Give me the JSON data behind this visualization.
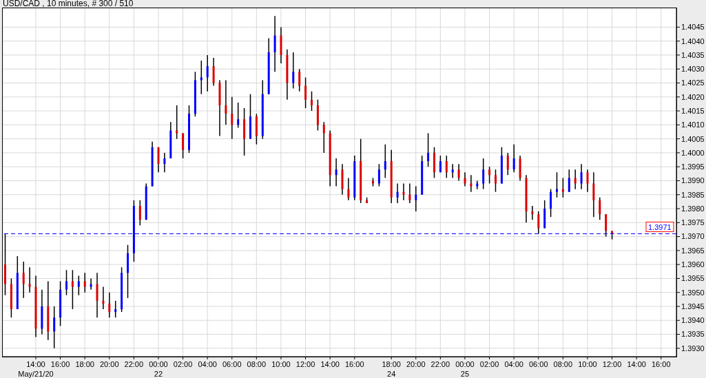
{
  "chart_data": {
    "type": "candlestick",
    "title": "USD/CAD , 10 minutes, # 300 / 510",
    "categories": [
      null,
      null,
      null,
      null,
      null,
      "14:00\nMay/21/20",
      null,
      null,
      null,
      "16:00",
      null,
      null,
      null,
      "18:00",
      null,
      null,
      null,
      "20:00",
      null,
      null,
      null,
      "22:00",
      null,
      null,
      null,
      "00:00\n22",
      null,
      null,
      null,
      "02:00",
      null,
      null,
      null,
      "04:00",
      null,
      null,
      null,
      "06:00",
      null,
      null,
      null,
      "08:00",
      null,
      null,
      null,
      "10:00",
      null,
      null,
      null,
      "12:00",
      null,
      null,
      null,
      "14:00",
      null,
      null,
      null,
      "16:00",
      null,
      null,
      null,
      null,
      null,
      "18:00\n24",
      null,
      null,
      null,
      "20:00",
      null,
      null,
      null,
      "22:00",
      null,
      null,
      null,
      "00:00\n25",
      null,
      null,
      null,
      "02:00",
      null,
      null,
      null,
      "04:00",
      null,
      null,
      null,
      "06:00",
      null,
      null,
      null,
      "08:00",
      null,
      null,
      null,
      "10:00",
      null,
      null,
      null,
      "12:00",
      null,
      null,
      null,
      "14:00",
      null,
      null,
      null,
      "16:00",
      null,
      null
    ],
    "ohlc": [
      [
        1.396,
        1.3971,
        1.3949,
        1.3953
      ],
      [
        1.3953,
        1.3955,
        1.3941,
        1.3944
      ],
      [
        1.3944,
        1.3963,
        1.3944,
        1.3957
      ],
      [
        1.3957,
        1.3961,
        1.3948,
        1.3953
      ],
      [
        1.3953,
        1.3959,
        1.395,
        1.3952
      ],
      [
        1.3952,
        1.3956,
        1.3934,
        1.3937
      ],
      [
        1.3937,
        1.3951,
        1.3935,
        1.3945
      ],
      [
        1.3945,
        1.3954,
        1.3933,
        1.3936
      ],
      [
        1.3936,
        1.3945,
        1.393,
        1.3941
      ],
      [
        1.3941,
        1.3954,
        1.3938,
        1.3951
      ],
      [
        1.3951,
        1.3958,
        1.3949,
        1.3954
      ],
      [
        1.3954,
        1.3958,
        1.3944,
        1.3952
      ],
      [
        1.3952,
        1.3956,
        1.3949,
        1.3954
      ],
      [
        1.3954,
        1.3957,
        1.395,
        1.3952
      ],
      [
        1.3952,
        1.3955,
        1.3951,
        1.3953
      ],
      [
        1.3953,
        1.3957,
        1.3941,
        1.3947
      ],
      [
        1.3947,
        1.3952,
        1.3944,
        1.3946
      ],
      [
        1.3946,
        1.395,
        1.3941,
        1.3943
      ],
      [
        1.3943,
        1.3947,
        1.3941,
        1.3944
      ],
      [
        1.3944,
        1.3959,
        1.3943,
        1.3957
      ],
      [
        1.3957,
        1.3967,
        1.3948,
        1.3964
      ],
      [
        1.3964,
        1.3983,
        1.3961,
        1.3981
      ],
      [
        1.3981,
        1.3983,
        1.3974,
        1.3976
      ],
      [
        1.3976,
        1.3989,
        1.3976,
        1.3988
      ],
      [
        1.3988,
        1.4004,
        1.3988,
        1.4002
      ],
      [
        1.4002,
        1.4002,
        1.3993,
        1.3996
      ],
      [
        1.3996,
        1.4,
        1.3993,
        1.3998
      ],
      [
        1.3998,
        1.4011,
        1.3998,
        1.4008
      ],
      [
        1.4008,
        1.4017,
        1.4005,
        1.4007
      ],
      [
        1.4007,
        1.4007,
        1.3998,
        1.4001
      ],
      [
        1.4001,
        1.4017,
        1.4,
        1.4014
      ],
      [
        1.4014,
        1.4029,
        1.4013,
        1.4026
      ],
      [
        1.4026,
        1.4033,
        1.4021,
        1.4027
      ],
      [
        1.4027,
        1.4035,
        1.4022,
        1.4031
      ],
      [
        1.4031,
        1.4034,
        1.4024,
        1.4025
      ],
      [
        1.4025,
        1.4026,
        1.4006,
        1.4017
      ],
      [
        1.4017,
        1.4026,
        1.401,
        1.4014
      ],
      [
        1.4014,
        1.402,
        1.4005,
        1.401
      ],
      [
        1.401,
        1.4018,
        1.4009,
        1.4012
      ],
      [
        1.4012,
        1.4016,
        1.3999,
        1.4005
      ],
      [
        1.4005,
        1.4021,
        1.4005,
        1.4013
      ],
      [
        1.4013,
        1.4014,
        1.4003,
        1.4006
      ],
      [
        1.4006,
        1.4026,
        1.4005,
        1.4021
      ],
      [
        1.4021,
        1.4041,
        1.4021,
        1.4036
      ],
      [
        1.4036,
        1.4049,
        1.4029,
        1.4042
      ],
      [
        1.4042,
        1.4045,
        1.4032,
        1.4035
      ],
      [
        1.4035,
        1.4037,
        1.4019,
        1.4025
      ],
      [
        1.4025,
        1.4036,
        1.4023,
        1.4029
      ],
      [
        1.4029,
        1.403,
        1.4022,
        1.4024
      ],
      [
        1.4024,
        1.4027,
        1.4016,
        1.4019
      ],
      [
        1.4019,
        1.4022,
        1.4015,
        1.4017
      ],
      [
        1.4017,
        1.4019,
        1.4008,
        1.401
      ],
      [
        1.401,
        1.4011,
        1.4,
        1.4007
      ],
      [
        1.4007,
        1.4008,
        1.3988,
        1.3992
      ],
      [
        1.3992,
        1.3998,
        1.3988,
        1.3994
      ],
      [
        1.3994,
        1.3996,
        1.3985,
        1.3987
      ],
      [
        1.3987,
        1.3991,
        1.3983,
        1.3984
      ],
      [
        1.3984,
        1.3999,
        1.3983,
        1.3997
      ],
      [
        1.3997,
        1.4005,
        1.3982,
        1.3983
      ],
      [
        1.3983,
        1.3984,
        1.3982,
        1.3982
      ],
      [
        1.399,
        1.3991,
        1.3988,
        1.3989
      ],
      [
        1.3989,
        1.3996,
        1.3988,
        1.3994
      ],
      [
        1.3994,
        1.4003,
        1.3991,
        1.3997
      ],
      [
        1.3997,
        1.4001,
        1.3982,
        1.3984
      ],
      [
        1.3984,
        1.3989,
        1.3982,
        1.3986
      ],
      [
        1.3986,
        1.3989,
        1.3983,
        1.3985
      ],
      [
        1.3985,
        1.3989,
        1.3982,
        1.3983
      ],
      [
        1.3983,
        1.3988,
        1.3979,
        1.3985
      ],
      [
        1.3985,
        1.3999,
        1.3985,
        1.3997
      ],
      [
        1.3997,
        1.4007,
        1.3995,
        1.4
      ],
      [
        1.4,
        1.4002,
        1.3991,
        1.3993
      ],
      [
        1.3993,
        1.3999,
        1.3993,
        1.3997
      ],
      [
        1.3997,
        1.3999,
        1.3991,
        1.3993
      ],
      [
        1.3993,
        1.3996,
        1.3991,
        1.3994
      ],
      [
        1.3994,
        1.3996,
        1.399,
        1.3991
      ],
      [
        1.3991,
        1.3993,
        1.3988,
        1.3989
      ],
      [
        1.3989,
        1.3992,
        1.3986,
        1.3988
      ],
      [
        1.3988,
        1.399,
        1.3987,
        1.3989
      ],
      [
        1.3989,
        1.3998,
        1.3987,
        1.3994
      ],
      [
        1.3994,
        1.3995,
        1.3989,
        1.3992
      ],
      [
        1.3992,
        1.3994,
        1.3986,
        1.3989
      ],
      [
        1.3989,
        1.4002,
        1.3989,
        1.3999
      ],
      [
        1.3999,
        1.4,
        1.3992,
        1.3994
      ],
      [
        1.3994,
        1.4003,
        1.3993,
        1.3998
      ],
      [
        1.3998,
        1.3999,
        1.399,
        1.3991
      ],
      [
        1.3991,
        1.3992,
        1.3975,
        1.3979
      ],
      [
        1.3979,
        1.3981,
        1.3976,
        1.3978
      ],
      [
        1.3978,
        1.3979,
        1.3971,
        1.3973
      ],
      [
        1.3973,
        1.3983,
        1.3973,
        1.398
      ],
      [
        1.398,
        1.3987,
        1.3977,
        1.3986
      ],
      [
        1.3986,
        1.3993,
        1.3984,
        1.3987
      ],
      [
        1.3987,
        1.3991,
        1.3984,
        1.3986
      ],
      [
        1.3986,
        1.3994,
        1.3986,
        1.3991
      ],
      [
        1.3991,
        1.3994,
        1.3987,
        1.3989
      ],
      [
        1.3989,
        1.3996,
        1.3987,
        1.3993
      ],
      [
        1.3993,
        1.3994,
        1.3986,
        1.3989
      ],
      [
        1.3989,
        1.3993,
        1.3977,
        1.3983
      ],
      [
        1.3983,
        1.3984,
        1.3976,
        1.3978
      ],
      [
        1.3978,
        1.3978,
        1.397,
        1.3972
      ],
      [
        1.3972,
        1.3972,
        1.3969,
        1.3971
      ],
      null,
      null,
      null,
      null,
      null,
      null,
      null,
      null,
      null,
      null
    ],
    "colors": [
      "#dd0000",
      "#dd0000",
      "#0000ff",
      "#dd0000",
      "#dd0000",
      "#dd0000",
      "#0000ff",
      "#dd0000",
      "#0000ff",
      "#0000ff",
      "#0000ff",
      "#dd0000",
      "#0000ff",
      "#dd0000",
      "#0000ff",
      "#dd0000",
      "#dd0000",
      "#dd0000",
      "#0000ff",
      "#0000ff",
      "#0000ff",
      "#0000ff",
      "#dd0000",
      "#0000ff",
      "#0000ff",
      "#dd0000",
      "#0000ff",
      "#0000ff",
      "#dd0000",
      "#dd0000",
      "#0000ff",
      "#0000ff",
      "#0000ff",
      "#0000ff",
      "#dd0000",
      "#dd0000",
      "#dd0000",
      "#dd0000",
      "#0000ff",
      "#dd0000",
      "#0000ff",
      "#dd0000",
      "#0000ff",
      "#0000ff",
      "#0000ff",
      "#dd0000",
      "#dd0000",
      "#0000ff",
      "#dd0000",
      "#dd0000",
      "#dd0000",
      "#dd0000",
      "#dd0000",
      "#dd0000",
      "#0000ff",
      "#dd0000",
      "#dd0000",
      "#0000ff",
      "#dd0000",
      "#dd0000",
      "#dd0000",
      "#0000ff",
      "#0000ff",
      "#dd0000",
      "#0000ff",
      "#dd0000",
      "#dd0000",
      "#0000ff",
      "#0000ff",
      "#0000ff",
      "#dd0000",
      "#0000ff",
      "#dd0000",
      "#0000ff",
      "#dd0000",
      "#dd0000",
      "#dd0000",
      "#0000ff",
      "#0000ff",
      "#dd0000",
      "#dd0000",
      "#0000ff",
      "#dd0000",
      "#0000ff",
      "#dd0000",
      "#dd0000",
      "#dd0000",
      "#dd0000",
      "#0000ff",
      "#0000ff",
      "#0000ff",
      "#dd0000",
      "#0000ff",
      "#dd0000",
      "#0000ff",
      "#dd0000",
      "#dd0000",
      "#dd0000",
      "#dd0000",
      "#dd0000",
      null,
      null,
      null,
      null,
      null,
      null,
      null,
      null,
      null,
      null
    ],
    "ylim": [
      1.3927,
      1.4052
    ],
    "yticks": [
      {
        "value": 1.393,
        "label": "1.3930"
      },
      1.3935,
      {
        "value": 1.394,
        "label": "1.3940"
      },
      1.3945,
      {
        "value": 1.395,
        "label": "1.3950"
      },
      1.3955,
      {
        "value": 1.396,
        "label": "1.3960"
      },
      1.3965,
      {
        "value": 1.397,
        "label": "1.3970"
      },
      1.3975,
      {
        "value": 1.398,
        "label": "1.3980"
      },
      1.3985,
      {
        "value": 1.399,
        "label": "1.3990"
      },
      1.3995,
      {
        "value": 1.4,
        "label": "1.4000"
      },
      1.4005,
      {
        "value": 1.401,
        "label": "1.4010"
      },
      1.4015,
      {
        "value": 1.402,
        "label": "1.4020"
      },
      1.4025,
      {
        "value": 1.403,
        "label": "1.4030"
      },
      1.4035,
      {
        "value": 1.404,
        "label": "1.4040"
      },
      1.4045
    ],
    "ref_lines": [
      {
        "axis": "y",
        "value": 1.3971,
        "label": "1.3971",
        "color": "#0000ff",
        "line_style": "dashed"
      }
    ],
    "grid": true
  }
}
